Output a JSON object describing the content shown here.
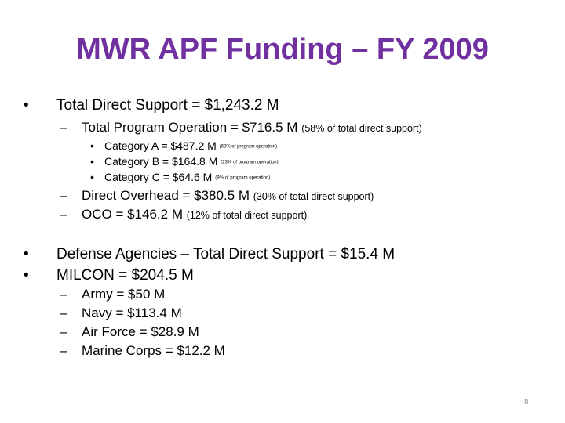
{
  "title": "MWR APF Funding – FY 2009",
  "bullets": {
    "b1": {
      "marker": "•",
      "text": "Total Direct Support = $1,243.2 M"
    },
    "b1a": {
      "marker": "–",
      "text": "Total Program Operation = $716.5 M ",
      "note": "(58% of total direct support)"
    },
    "b1a1": {
      "marker": "•",
      "text": "Category A = $487.2 M ",
      "note": "(68% of program operation)"
    },
    "b1a2": {
      "marker": "•",
      "text": "Category B = $164.8 M ",
      "note": "(23% of program operation)"
    },
    "b1a3": {
      "marker": "•",
      "text": "Category C = $64.6 M ",
      "note": "(9% of program operation)"
    },
    "b1b": {
      "marker": "–",
      "text": "Direct Overhead  = $380.5 M ",
      "note": "(30% of total direct support)"
    },
    "b1c": {
      "marker": "–",
      "text": "OCO = $146.2 M ",
      "note": "(12% of total direct support)"
    },
    "b2": {
      "marker": "•",
      "text": "Defense Agencies – Total Direct Support = $15.4 M"
    },
    "b3": {
      "marker": "•",
      "text": "MILCON = $204.5 M"
    },
    "b3a": {
      "marker": "–",
      "text": "Army = $50 M"
    },
    "b3b": {
      "marker": "–",
      "text": "Navy = $113.4 M"
    },
    "b3c": {
      "marker": "–",
      "text": "Air Force = $28.9 M"
    },
    "b3d": {
      "marker": "–",
      "text": "Marine Corps = $12.2 M"
    }
  },
  "page_number": "8",
  "colors": {
    "title": "#7030a0",
    "text": "#000000",
    "page_number": "#888888"
  }
}
